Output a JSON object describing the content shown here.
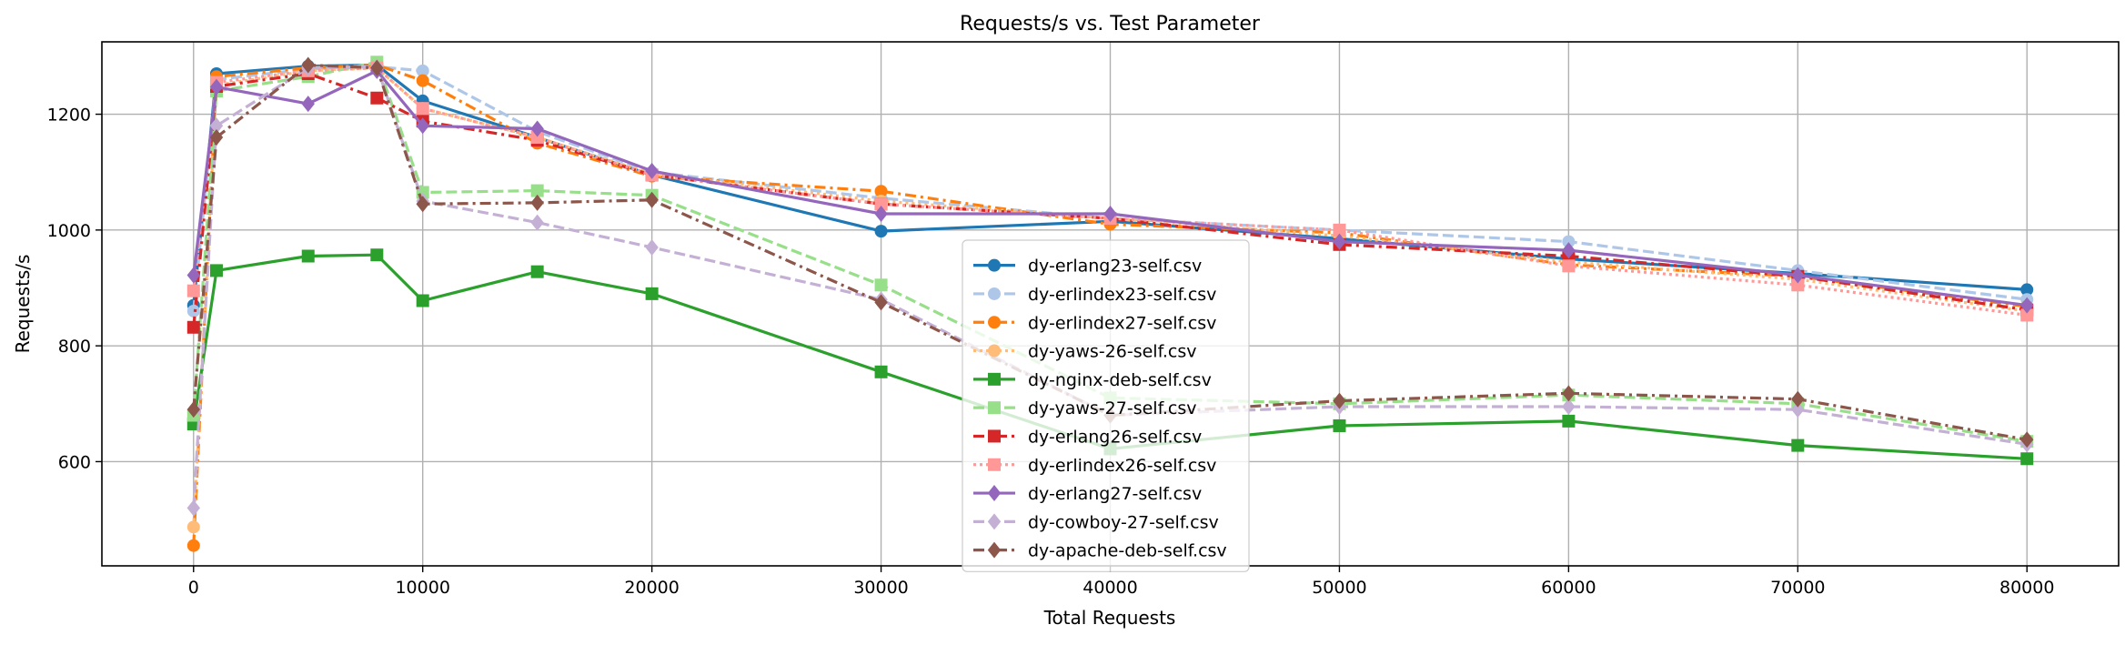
{
  "chart_data": {
    "type": "line",
    "title": "Requests/s vs. Test Parameter",
    "xlabel": "Total Requests",
    "ylabel": "Requests/s",
    "xlim": [
      -4000,
      84000
    ],
    "ylim": [
      420,
      1325
    ],
    "xticks": [
      0,
      10000,
      20000,
      30000,
      40000,
      50000,
      60000,
      70000,
      80000
    ],
    "yticks": [
      600,
      800,
      1000,
      1200
    ],
    "grid": true,
    "legend_position": "lower-center",
    "x": [
      1,
      1000,
      5000,
      8000,
      10000,
      15000,
      20000,
      30000,
      40000,
      50000,
      60000,
      70000,
      80000
    ],
    "series": [
      {
        "name": "dy-erlang23-self.csv",
        "color": "#1f77b4",
        "dash": "solid",
        "marker": "circle",
        "values": [
          870,
          1270,
          1283,
          1285,
          1223,
          1160,
          1095,
          998,
          1015,
          985,
          950,
          925,
          897
        ]
      },
      {
        "name": "dy-erlindex23-self.csv",
        "color": "#aec7e8",
        "dash": "dashed",
        "marker": "circle",
        "values": [
          860,
          1260,
          1278,
          1282,
          1275,
          1170,
          1100,
          1055,
          1020,
          1000,
          980,
          930,
          880
        ]
      },
      {
        "name": "dy-erlindex27-self.csv",
        "color": "#ff7f0e",
        "dash": "dashdot",
        "marker": "circle",
        "values": [
          455,
          1265,
          1280,
          1285,
          1258,
          1150,
          1093,
          1067,
          1010,
          995,
          940,
          920,
          868
        ]
      },
      {
        "name": "dy-yaws-26-self.csv",
        "color": "#ffbb78",
        "dash": "dotted",
        "marker": "circle",
        "values": [
          487,
          1250,
          1275,
          1280,
          1210,
          1160,
          1097,
          1050,
          1020,
          990,
          945,
          915,
          860
        ]
      },
      {
        "name": "dy-nginx-deb-self.csv",
        "color": "#2ca02c",
        "dash": "solid",
        "marker": "square",
        "values": [
          665,
          930,
          955,
          957,
          878,
          928,
          890,
          755,
          622,
          662,
          670,
          628,
          605
        ]
      },
      {
        "name": "dy-yaws-27-self.csv",
        "color": "#98df8a",
        "dash": "dashed",
        "marker": "square",
        "values": [
          680,
          1240,
          1265,
          1290,
          1065,
          1068,
          1060,
          905,
          710,
          700,
          715,
          700,
          635
        ]
      },
      {
        "name": "dy-erlang26-self.csv",
        "color": "#d62728",
        "dash": "dashdot",
        "marker": "square",
        "values": [
          832,
          1248,
          1270,
          1228,
          1188,
          1155,
          1095,
          1045,
          1020,
          975,
          955,
          920,
          862
        ]
      },
      {
        "name": "dy-erlindex26-self.csv",
        "color": "#ff9896",
        "dash": "dotted",
        "marker": "square",
        "values": [
          895,
          1255,
          1275,
          1280,
          1210,
          1160,
          1095,
          1045,
          1020,
          1000,
          938,
          905,
          853
        ]
      },
      {
        "name": "dy-erlang27-self.csv",
        "color": "#9467bd",
        "dash": "solid",
        "marker": "diamond",
        "values": [
          922,
          1247,
          1218,
          1275,
          1180,
          1175,
          1102,
          1028,
          1028,
          980,
          965,
          922,
          870
        ]
      },
      {
        "name": "dy-cowboy-27-self.csv",
        "color": "#c5b0d5",
        "dash": "dashed",
        "marker": "diamond",
        "values": [
          520,
          1180,
          1280,
          1282,
          1050,
          1013,
          970,
          880,
          680,
          695,
          695,
          690,
          630
        ]
      },
      {
        "name": "dy-apache-deb-self.csv",
        "color": "#8c564b",
        "dash": "dashdot",
        "marker": "diamond",
        "values": [
          690,
          1160,
          1285,
          1280,
          1045,
          1047,
          1052,
          875,
          680,
          705,
          718,
          708,
          638
        ]
      }
    ]
  }
}
